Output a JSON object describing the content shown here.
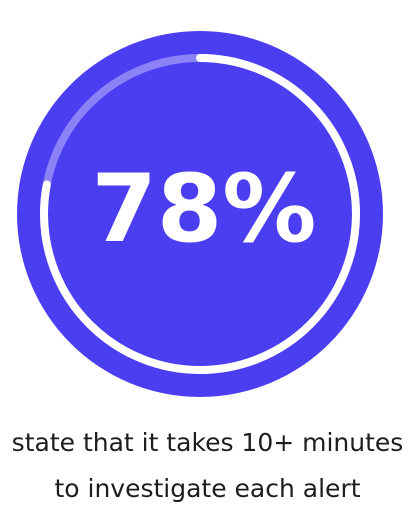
{
  "chart_data": {
    "type": "progress-ring",
    "value": 78,
    "value_label": "78%",
    "max": 100,
    "color": "#ffffff",
    "track_color": "#8a82f6",
    "background_color": "#4b3df0",
    "caption_lines": [
      "state that it takes 10+ minutes",
      "to investigate each alert"
    ]
  }
}
